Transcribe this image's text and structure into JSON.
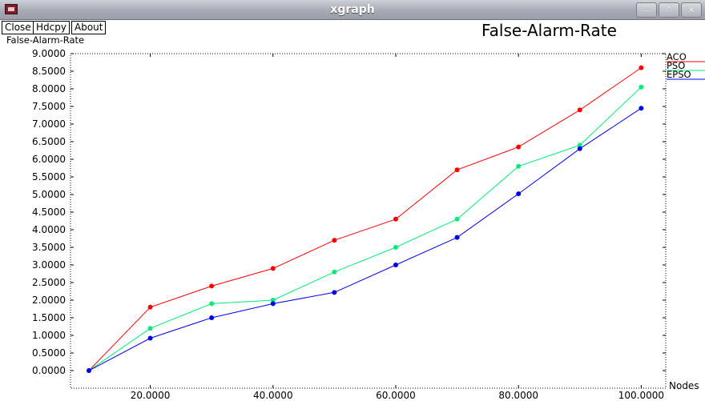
{
  "window": {
    "title": "xgraph",
    "controls": {
      "minimize": "—",
      "maximize": "^",
      "close": "✕"
    }
  },
  "buttons": {
    "close": "Close",
    "hardcopy": "Hdcpy",
    "about": "About"
  },
  "chart_data": {
    "type": "line",
    "title": "False-Alarm-Rate",
    "ylabel": "False-Alarm-Rate",
    "xlabel": "Nodes",
    "x_ticks": [
      "20.0000",
      "40.0000",
      "60.0000",
      "80.0000",
      "100.0000"
    ],
    "y_ticks": [
      "0.0000",
      "0.5000",
      "1.0000",
      "1.5000",
      "2.0000",
      "2.5000",
      "3.0000",
      "3.5000",
      "4.0000",
      "4.5000",
      "5.0000",
      "5.5000",
      "6.0000",
      "6.5000",
      "7.0000",
      "7.5000",
      "8.0000",
      "8.5000",
      "9.0000"
    ],
    "xlim": [
      7,
      104
    ],
    "ylim": [
      -0.5,
      9.0
    ],
    "grid": false,
    "legend": "top-right",
    "x": [
      10,
      20,
      30,
      40,
      50,
      60,
      70,
      80,
      90,
      100
    ],
    "series": [
      {
        "name": "ACO",
        "color": "#ff0000",
        "values": [
          0.0,
          1.8,
          2.4,
          2.9,
          3.7,
          4.3,
          5.7,
          6.35,
          7.4,
          8.6
        ]
      },
      {
        "name": "PSO",
        "color": "#00ee77",
        "values": [
          0.0,
          1.2,
          1.9,
          2.0,
          2.8,
          3.5,
          4.3,
          5.8,
          6.4,
          8.05
        ]
      },
      {
        "name": "EPSO",
        "color": "#0000ee",
        "values": [
          0.0,
          0.92,
          1.5,
          1.9,
          2.22,
          3.0,
          3.78,
          5.02,
          6.3,
          7.45
        ]
      }
    ]
  }
}
